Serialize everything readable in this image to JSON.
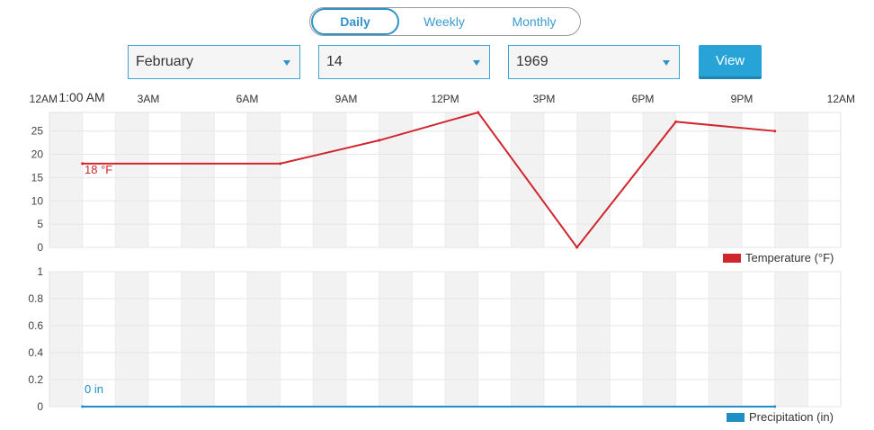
{
  "toggle": {
    "items": [
      "Daily",
      "Weekly",
      "Monthly"
    ],
    "active": "Daily"
  },
  "selects": {
    "month": "February",
    "day": "14",
    "year": "1969"
  },
  "view_label": "View",
  "colors": {
    "accent": "#27a3d8",
    "temperature": "#d0262d",
    "precipitation": "#1f8ec4",
    "band": "#f2f2f2"
  },
  "chart_data": [
    {
      "type": "line",
      "x_axis_title": "",
      "x_ticks": [
        "12AM",
        "3AM",
        "6AM",
        "9AM",
        "12PM",
        "3PM",
        "6PM",
        "9PM",
        "12AM"
      ],
      "hover_label": "1:00 AM",
      "ylim": [
        0,
        29
      ],
      "y_ticks": [
        0,
        5,
        10,
        15,
        20,
        25
      ],
      "grid": true,
      "legend": "bottom-right",
      "series": [
        {
          "name": "Temperature (°F)",
          "x_hours": [
            1,
            7,
            10,
            13,
            16,
            19,
            22
          ],
          "values": [
            18,
            18,
            23,
            29,
            0,
            27,
            25
          ]
        }
      ],
      "annotation": "18 °F"
    },
    {
      "type": "line",
      "ylim": [
        0,
        1
      ],
      "y_ticks": [
        "0",
        "0.2",
        "0.4",
        "0.6",
        "0.8",
        "1"
      ],
      "grid": true,
      "legend": "bottom-right",
      "series": [
        {
          "name": "Precipitation (in)",
          "x_hours": [
            1,
            22
          ],
          "values": [
            0,
            0
          ]
        }
      ],
      "annotation": "0 in"
    }
  ]
}
